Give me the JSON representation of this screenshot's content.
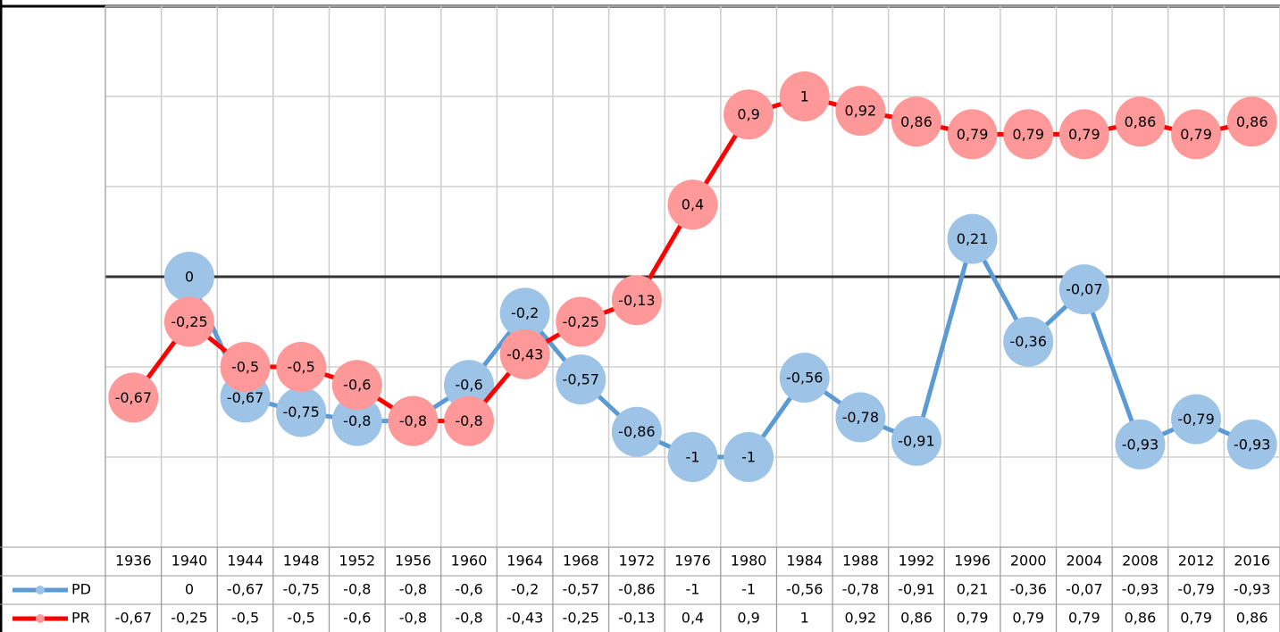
{
  "chart_data": {
    "type": "line",
    "categories": [
      "1936",
      "1940",
      "1944",
      "1948",
      "1952",
      "1956",
      "1960",
      "1964",
      "1968",
      "1972",
      "1976",
      "1980",
      "1984",
      "1988",
      "1992",
      "1996",
      "2000",
      "2004",
      "2008",
      "2012",
      "2016"
    ],
    "series": [
      {
        "name": "PD",
        "color": "#5b9bd5",
        "marker_color": "#9dc3e6",
        "values": [
          null,
          0,
          -0.67,
          -0.75,
          -0.8,
          -0.8,
          -0.6,
          -0.2,
          -0.57,
          -0.86,
          -1,
          -1,
          -0.56,
          -0.78,
          -0.91,
          0.21,
          -0.36,
          -0.07,
          -0.93,
          -0.79,
          -0.93
        ],
        "value_labels": [
          null,
          "0",
          "-0,67",
          "-0,75",
          "-0,8",
          "-0,8",
          "-0,6",
          "-0,2",
          "-0,57",
          "-0,86",
          "-1",
          "-1",
          "-0,56",
          "-0,78",
          "-0,91",
          "0,21",
          "-0,36",
          "-0,07",
          "-0,93",
          "-0,79",
          "-0,93"
        ]
      },
      {
        "name": "PR",
        "color": "#ff0000",
        "marker_color": "#ff9999",
        "values": [
          -0.67,
          -0.25,
          -0.5,
          -0.5,
          -0.6,
          -0.8,
          -0.8,
          -0.43,
          -0.25,
          -0.13,
          0.4,
          0.9,
          1,
          0.92,
          0.86,
          0.79,
          0.79,
          0.79,
          0.86,
          0.79,
          0.86
        ],
        "value_labels": [
          "-0,67",
          "-0,25",
          "-0,5",
          "-0,5",
          "-0,6",
          "-0,8",
          "-0,8",
          "-0,43",
          "-0,25",
          "-0,13",
          "0,4",
          "0,9",
          "1",
          "0,92",
          "0,86",
          "0,79",
          "0,79",
          "0,79",
          "0,86",
          "0,79",
          "0,86"
        ]
      }
    ],
    "ylim": [
      -1.5,
      1.5
    ],
    "yticks": [
      -1.5,
      -1,
      -0.5,
      0,
      0.5,
      1,
      1.5
    ],
    "grid": true,
    "data_table": true
  }
}
